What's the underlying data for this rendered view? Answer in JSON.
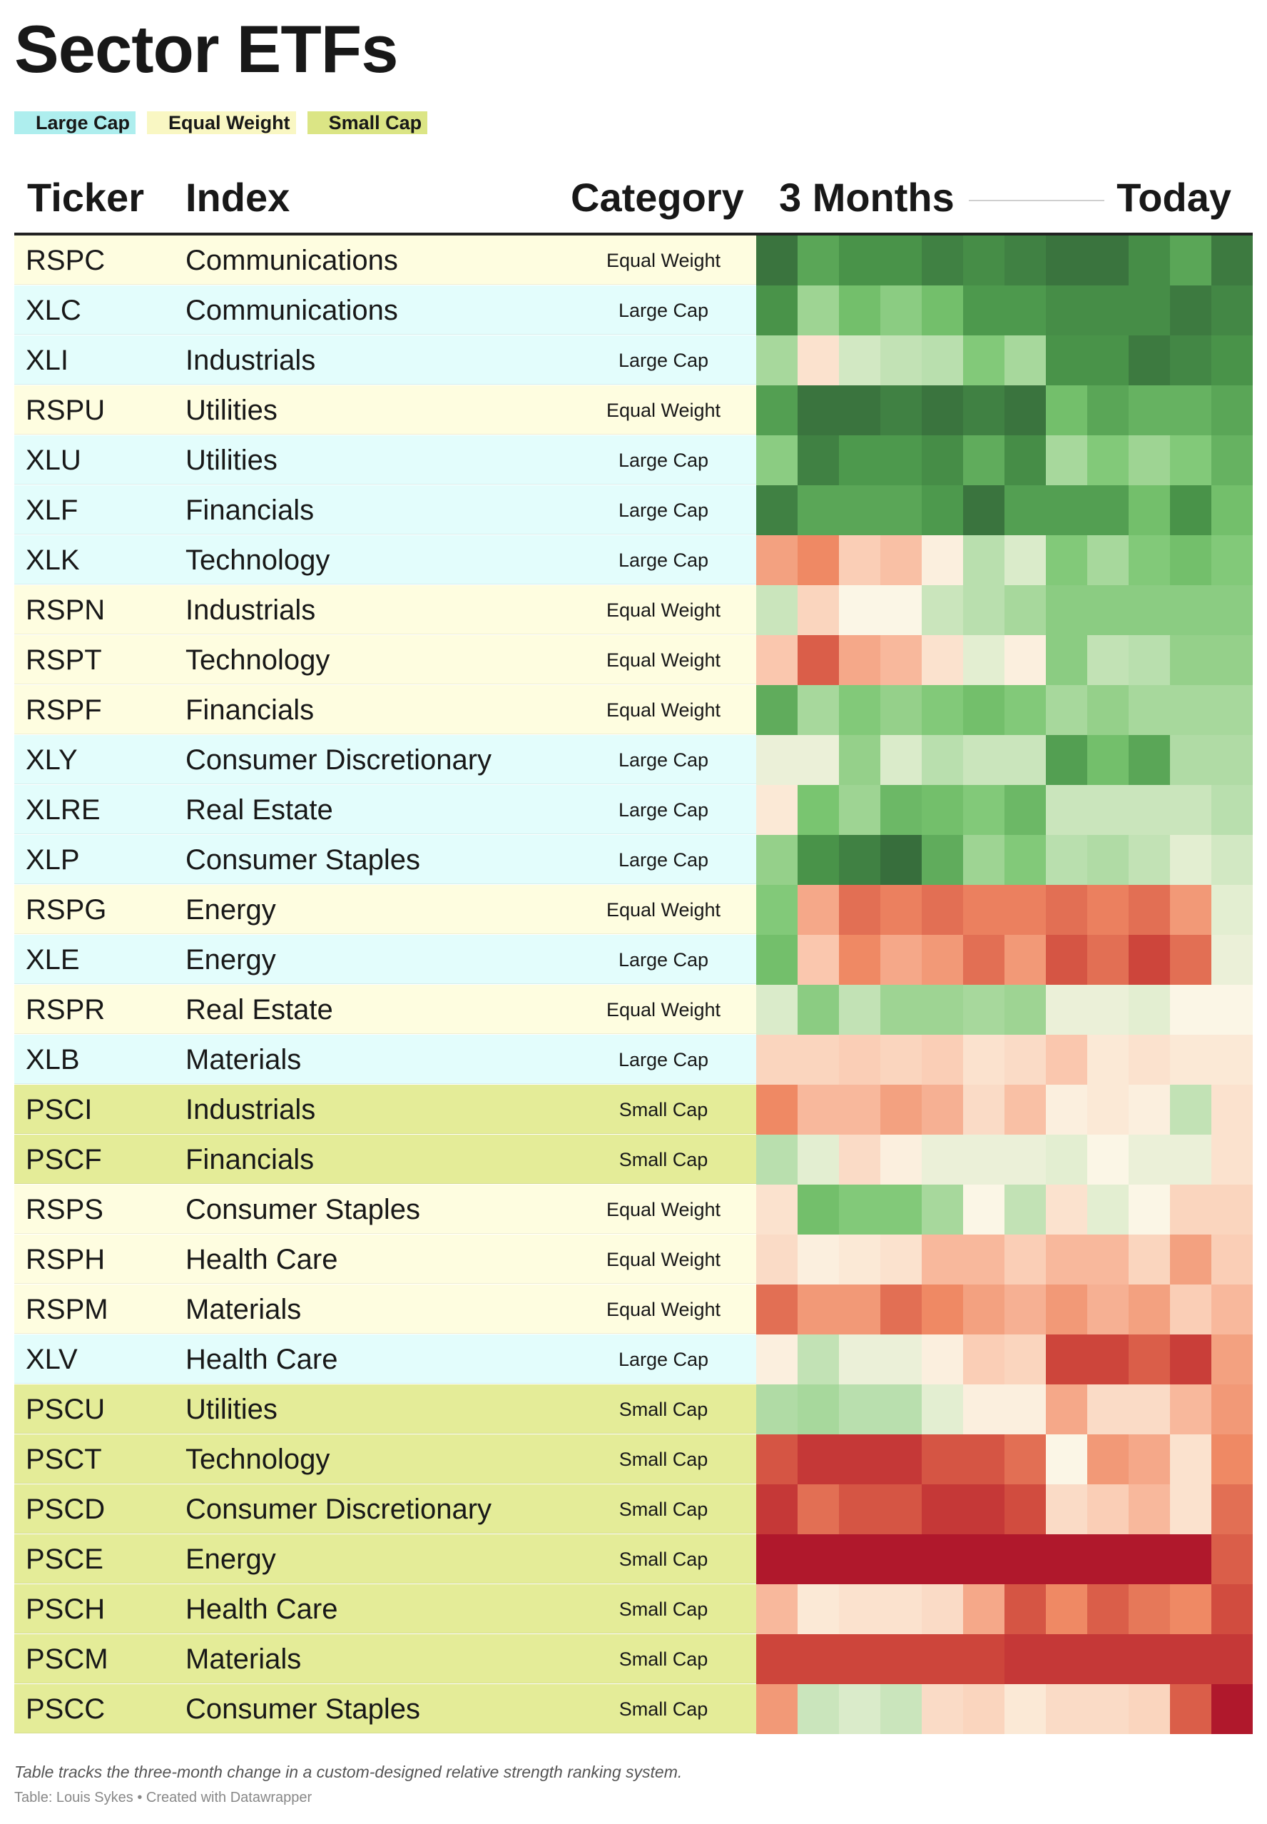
{
  "title": "Sector ETFs",
  "legend": [
    {
      "label": "Large Cap",
      "color": "#aeeeee"
    },
    {
      "label": "Equal Weight",
      "color": "#f9f7c3"
    },
    {
      "label": "Small Cap",
      "color": "#dbe585"
    }
  ],
  "category_colors": {
    "Large Cap": "#e3fdfc",
    "Equal Weight": "#fefde0",
    "Small Cap": "#e4ec98"
  },
  "headers": {
    "ticker": "Ticker",
    "index": "Index",
    "category": "Category",
    "start": "3 Months",
    "end": "Today"
  },
  "chart_data": {
    "type": "heatmap",
    "title": "Sector ETFs",
    "columns": 12,
    "scale": "negative = red, positive = green; range -3 to 3",
    "value_range": [
      -3,
      3
    ],
    "rows": [
      {
        "ticker": "RSPC",
        "index": "Communications",
        "category": "Equal Weight",
        "values": [
          2.8,
          2.0,
          2.3,
          2.3,
          2.6,
          2.4,
          2.6,
          2.8,
          2.8,
          2.4,
          2.0,
          2.7
        ]
      },
      {
        "ticker": "XLC",
        "index": "Communications",
        "category": "Large Cap",
        "values": [
          2.3,
          1.1,
          1.6,
          1.3,
          1.6,
          2.2,
          2.2,
          2.4,
          2.4,
          2.4,
          2.7,
          2.5
        ]
      },
      {
        "ticker": "XLI",
        "index": "Industrials",
        "category": "Large Cap",
        "values": [
          1.0,
          -0.3,
          0.5,
          0.7,
          0.8,
          1.4,
          1.0,
          2.3,
          2.3,
          2.7,
          2.5,
          2.3
        ]
      },
      {
        "ticker": "RSPU",
        "index": "Utilities",
        "category": "Equal Weight",
        "values": [
          2.1,
          2.8,
          2.8,
          2.6,
          2.8,
          2.6,
          2.8,
          1.6,
          2.0,
          1.8,
          1.8,
          2.0
        ]
      },
      {
        "ticker": "XLU",
        "index": "Utilities",
        "category": "Large Cap",
        "values": [
          1.3,
          2.6,
          2.2,
          2.2,
          2.4,
          1.9,
          2.4,
          1.0,
          1.4,
          1.1,
          1.4,
          1.8
        ]
      },
      {
        "ticker": "XLF",
        "index": "Financials",
        "category": "Large Cap",
        "values": [
          2.6,
          2.0,
          2.0,
          2.0,
          2.2,
          2.8,
          2.1,
          2.1,
          2.1,
          1.6,
          2.3,
          1.6
        ]
      },
      {
        "ticker": "XLK",
        "index": "Technology",
        "category": "Large Cap",
        "values": [
          -1.2,
          -1.5,
          -0.6,
          -0.8,
          -0.1,
          0.8,
          0.4,
          1.4,
          1.0,
          1.4,
          1.6,
          1.4
        ]
      },
      {
        "ticker": "RSPN",
        "index": "Industrials",
        "category": "Equal Weight",
        "values": [
          0.6,
          -0.5,
          0.0,
          0.0,
          0.6,
          0.8,
          1.0,
          1.3,
          1.3,
          1.3,
          1.3,
          1.3
        ]
      },
      {
        "ticker": "RSPT",
        "index": "Technology",
        "category": "Equal Weight",
        "values": [
          -0.7,
          -2.0,
          -1.1,
          -0.9,
          -0.3,
          0.3,
          -0.1,
          1.3,
          0.7,
          0.8,
          1.2,
          1.2
        ]
      },
      {
        "ticker": "RSPF",
        "index": "Financials",
        "category": "Equal Weight",
        "values": [
          1.9,
          1.0,
          1.4,
          1.2,
          1.4,
          1.6,
          1.4,
          1.0,
          1.2,
          1.0,
          1.0,
          1.0
        ]
      },
      {
        "ticker": "XLY",
        "index": "Consumer Discretionary",
        "category": "Large Cap",
        "values": [
          0.2,
          0.2,
          1.2,
          0.4,
          0.8,
          0.6,
          0.6,
          2.1,
          1.6,
          2.0,
          0.9,
          0.9
        ]
      },
      {
        "ticker": "XLRE",
        "index": "Real Estate",
        "category": "Large Cap",
        "values": [
          -0.2,
          1.5,
          1.1,
          1.7,
          1.6,
          1.4,
          1.7,
          0.6,
          0.6,
          0.6,
          0.6,
          0.8
        ]
      },
      {
        "ticker": "XLP",
        "index": "Consumer Staples",
        "category": "Large Cap",
        "values": [
          1.2,
          2.3,
          2.6,
          2.9,
          1.9,
          1.1,
          1.4,
          0.8,
          0.9,
          0.7,
          0.3,
          0.5
        ]
      },
      {
        "ticker": "RSPG",
        "index": "Energy",
        "category": "Equal Weight",
        "values": [
          1.4,
          -1.1,
          -1.8,
          -1.6,
          -1.8,
          -1.6,
          -1.6,
          -1.8,
          -1.6,
          -1.8,
          -1.3,
          0.3
        ]
      },
      {
        "ticker": "XLE",
        "index": "Energy",
        "category": "Large Cap",
        "values": [
          1.6,
          -0.7,
          -1.5,
          -1.1,
          -1.3,
          -1.8,
          -1.3,
          -2.1,
          -1.8,
          -2.3,
          -1.8,
          0.2
        ]
      },
      {
        "ticker": "RSPR",
        "index": "Real Estate",
        "category": "Equal Weight",
        "values": [
          0.4,
          1.3,
          0.7,
          1.1,
          1.1,
          1.0,
          1.1,
          0.2,
          0.2,
          0.3,
          0.0,
          0.0
        ]
      },
      {
        "ticker": "XLB",
        "index": "Materials",
        "category": "Large Cap",
        "values": [
          -0.5,
          -0.5,
          -0.6,
          -0.5,
          -0.6,
          -0.3,
          -0.4,
          -0.7,
          -0.2,
          -0.3,
          -0.2,
          -0.2
        ]
      },
      {
        "ticker": "PSCI",
        "index": "Industrials",
        "category": "Small Cap",
        "values": [
          -1.5,
          -0.9,
          -0.9,
          -1.2,
          -1.0,
          -0.4,
          -0.8,
          -0.1,
          -0.2,
          -0.1,
          0.7,
          -0.3
        ]
      },
      {
        "ticker": "PSCF",
        "index": "Financials",
        "category": "Small Cap",
        "values": [
          0.8,
          0.3,
          -0.4,
          -0.1,
          0.2,
          0.2,
          0.2,
          0.3,
          0.0,
          0.2,
          0.2,
          -0.3
        ]
      },
      {
        "ticker": "RSPS",
        "index": "Consumer Staples",
        "category": "Equal Weight",
        "values": [
          -0.3,
          1.6,
          1.4,
          1.4,
          1.0,
          0.0,
          0.7,
          -0.3,
          0.3,
          0.0,
          -0.5,
          -0.5
        ]
      },
      {
        "ticker": "RSPH",
        "index": "Health Care",
        "category": "Equal Weight",
        "values": [
          -0.4,
          -0.1,
          -0.2,
          -0.3,
          -0.9,
          -0.9,
          -0.6,
          -0.9,
          -0.9,
          -0.5,
          -1.2,
          -0.6
        ]
      },
      {
        "ticker": "RSPM",
        "index": "Materials",
        "category": "Equal Weight",
        "values": [
          -1.8,
          -1.3,
          -1.3,
          -1.8,
          -1.5,
          -1.2,
          -1.0,
          -1.3,
          -1.0,
          -1.2,
          -0.6,
          -0.9
        ]
      },
      {
        "ticker": "XLV",
        "index": "Health Care",
        "category": "Large Cap",
        "values": [
          -0.1,
          0.7,
          0.2,
          0.2,
          -0.1,
          -0.6,
          -0.5,
          -2.3,
          -2.3,
          -2.0,
          -2.4,
          -1.2
        ]
      },
      {
        "ticker": "PSCU",
        "index": "Utilities",
        "category": "Small Cap",
        "values": [
          0.9,
          1.0,
          0.8,
          0.8,
          0.3,
          -0.1,
          -0.1,
          -1.1,
          -0.4,
          -0.4,
          -0.9,
          -1.3
        ]
      },
      {
        "ticker": "PSCT",
        "index": "Technology",
        "category": "Small Cap",
        "values": [
          -2.1,
          -2.5,
          -2.5,
          -2.5,
          -2.1,
          -2.1,
          -1.8,
          0.0,
          -1.3,
          -1.1,
          -0.3,
          -1.5
        ]
      },
      {
        "ticker": "PSCD",
        "index": "Consumer Discretionary",
        "category": "Small Cap",
        "values": [
          -2.5,
          -1.8,
          -2.1,
          -2.1,
          -2.5,
          -2.5,
          -2.2,
          -0.4,
          -0.6,
          -0.9,
          -0.3,
          -1.8
        ]
      },
      {
        "ticker": "PSCE",
        "index": "Energy",
        "category": "Small Cap",
        "values": [
          -3.0,
          -3.0,
          -3.0,
          -3.0,
          -3.0,
          -3.0,
          -3.0,
          -3.0,
          -3.0,
          -3.0,
          -3.0,
          -2.0
        ]
      },
      {
        "ticker": "PSCH",
        "index": "Health Care",
        "category": "Small Cap",
        "values": [
          -0.9,
          -0.2,
          -0.3,
          -0.3,
          -0.4,
          -1.1,
          -2.1,
          -1.5,
          -2.0,
          -1.7,
          -1.5,
          -2.2
        ]
      },
      {
        "ticker": "PSCM",
        "index": "Materials",
        "category": "Small Cap",
        "values": [
          -2.3,
          -2.3,
          -2.3,
          -2.3,
          -2.3,
          -2.3,
          -2.5,
          -2.5,
          -2.5,
          -2.5,
          -2.5,
          -2.5
        ]
      },
      {
        "ticker": "PSCC",
        "index": "Consumer Staples",
        "category": "Small Cap",
        "values": [
          -1.3,
          0.6,
          0.4,
          0.6,
          -0.4,
          -0.5,
          -0.2,
          -0.4,
          -0.4,
          -0.5,
          -2.0,
          -3.0
        ]
      }
    ]
  },
  "footnote": "Table tracks the three-month change in a custom-designed relative strength ranking system.",
  "source": "Table: Louis Sykes • Created with Datawrapper"
}
